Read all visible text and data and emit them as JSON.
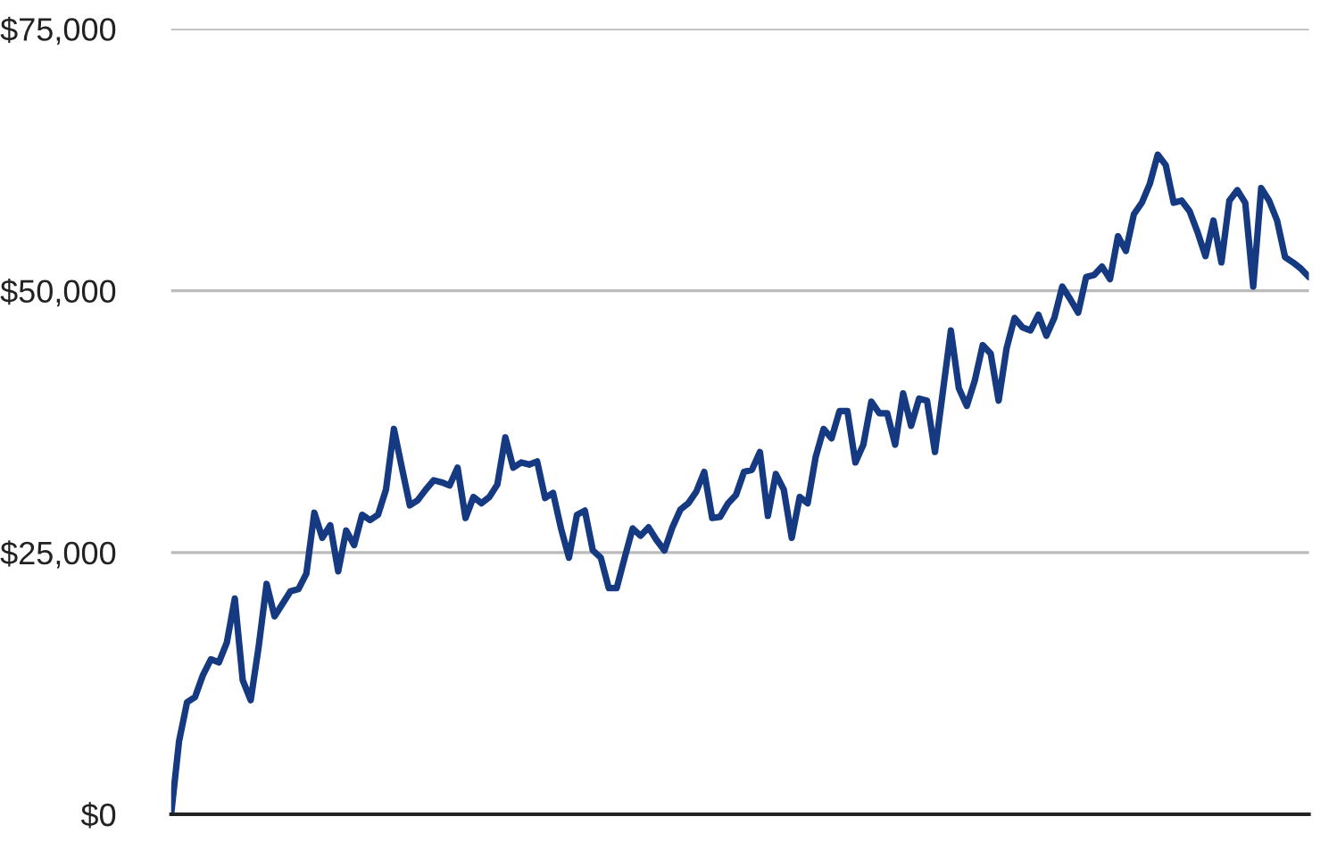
{
  "chart_data": {
    "type": "line",
    "categories": [
      null,
      null,
      null,
      null,
      null,
      null,
      null,
      null,
      null,
      null,
      null,
      null,
      null,
      null,
      null,
      null,
      null,
      null,
      null,
      null,
      null,
      null,
      null,
      null,
      null,
      null,
      null,
      null,
      null,
      null,
      null,
      null,
      null,
      null,
      null,
      null,
      null,
      null,
      null,
      null,
      null,
      null,
      null,
      null,
      null,
      null,
      null,
      null,
      null,
      null,
      null,
      null,
      null,
      null,
      null,
      null,
      null,
      null,
      null,
      null,
      null,
      null,
      null,
      null,
      null,
      null,
      null,
      null,
      null,
      null,
      null,
      null,
      null,
      null,
      null,
      null,
      null,
      null,
      null,
      null,
      null,
      null,
      null,
      null,
      null,
      null,
      null,
      null,
      null,
      null,
      null,
      null,
      null,
      null,
      null,
      null,
      null,
      null,
      null,
      null,
      null,
      null,
      null,
      null,
      null,
      null,
      null,
      null,
      null,
      null,
      null,
      null,
      null,
      null,
      null,
      null,
      null,
      null,
      null,
      null,
      null,
      null,
      null,
      null,
      null,
      null,
      null,
      null,
      null,
      null,
      null,
      null,
      null,
      null,
      null,
      null,
      null,
      null,
      null,
      null,
      null,
      null,
      null,
      null
    ],
    "series": [
      {
        "color": "#163a82",
        "values": [
          0,
          7000,
          10700,
          11200,
          13300,
          14800,
          14500,
          16400,
          20600,
          12800,
          10900,
          16000,
          22000,
          18900,
          20100,
          21300,
          21500,
          23000,
          28800,
          26400,
          27600,
          23200,
          27100,
          25700,
          28600,
          28100,
          28600,
          31000,
          36800,
          33100,
          29500,
          30000,
          31000,
          31900,
          31700,
          31400,
          33100,
          28300,
          30300,
          29700,
          30300,
          31500,
          36000,
          33100,
          33600,
          33400,
          33700,
          30200,
          30700,
          27300,
          24500,
          28600,
          29000,
          25200,
          24500,
          21600,
          21600,
          24500,
          27300,
          26600,
          27400,
          26200,
          25200,
          27400,
          29100,
          29700,
          30800,
          32700,
          28300,
          28400,
          29700,
          30500,
          32700,
          32900,
          34600,
          28500,
          32500,
          31000,
          26400,
          30300,
          29700,
          34100,
          36800,
          35900,
          38500,
          38500,
          33600,
          35300,
          39400,
          38300,
          38300,
          35300,
          40200,
          37100,
          39700,
          39500,
          34600,
          40400,
          46200,
          40700,
          39000,
          41400,
          44800,
          44000,
          39500,
          44500,
          47400,
          46500,
          46200,
          47700,
          45700,
          47400,
          50400,
          49200,
          47900,
          51300,
          51500,
          52300,
          51100,
          55200,
          53800,
          57300,
          58400,
          60200,
          63000,
          62000,
          58400,
          58600,
          57600,
          55600,
          53300,
          56700,
          52700,
          58600,
          59600,
          58400,
          50400,
          59800,
          58600,
          56700,
          53200,
          52700,
          52100,
          51300
        ]
      }
    ],
    "ylim": [
      0,
      75000
    ],
    "yticks": [
      {
        "value": 0,
        "label": "$0"
      },
      {
        "value": 25000,
        "label": "$25,000"
      },
      {
        "value": 50000,
        "label": "$50,000"
      },
      {
        "value": 75000,
        "label": "$75,000"
      }
    ],
    "grid": "y",
    "tick_labels": "y",
    "line_style": "solid",
    "marker": "none"
  }
}
